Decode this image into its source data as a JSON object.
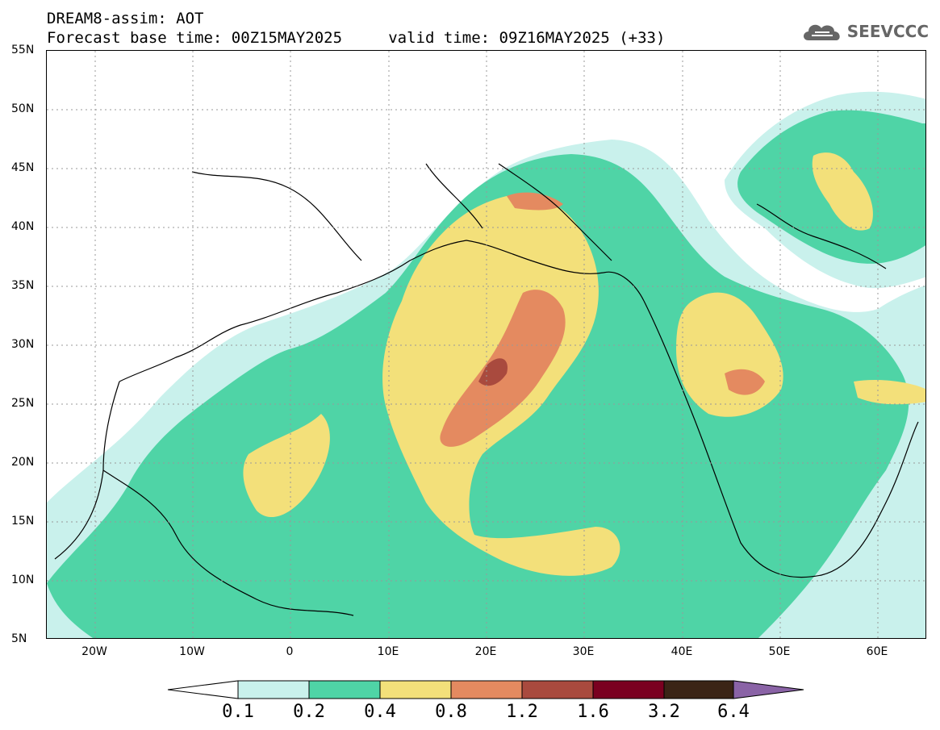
{
  "title": {
    "line1": "DREAM8-assim: AOT",
    "line2": "Forecast base time: 00Z15MAY2025     valid time: 09Z16MAY2025 (+33)"
  },
  "logo": {
    "text": "SEEVCCC",
    "icon": "cloud-icon"
  },
  "map": {
    "lat_labels": [
      "55N",
      "50N",
      "45N",
      "40N",
      "35N",
      "30N",
      "25N",
      "20N",
      "15N",
      "10N",
      "5N"
    ],
    "lon_labels": [
      "20W",
      "10W",
      "0",
      "10E",
      "20E",
      "30E",
      "40E",
      "50E",
      "60E"
    ],
    "lat_range": [
      5,
      55
    ],
    "lon_range": [
      -25,
      65
    ],
    "grid": "dotted"
  },
  "colorbar": {
    "labels": [
      "0.1",
      "0.2",
      "0.4",
      "0.8",
      "1.2",
      "1.6",
      "3.2",
      "6.4"
    ],
    "colors": [
      "#c9f1ec",
      "#4fd4a6",
      "#f3e07a",
      "#e48a60",
      "#a94a3e",
      "#7a0020",
      "#3b2416",
      "#8a63a6"
    ],
    "under_color": "#ffffff"
  }
}
